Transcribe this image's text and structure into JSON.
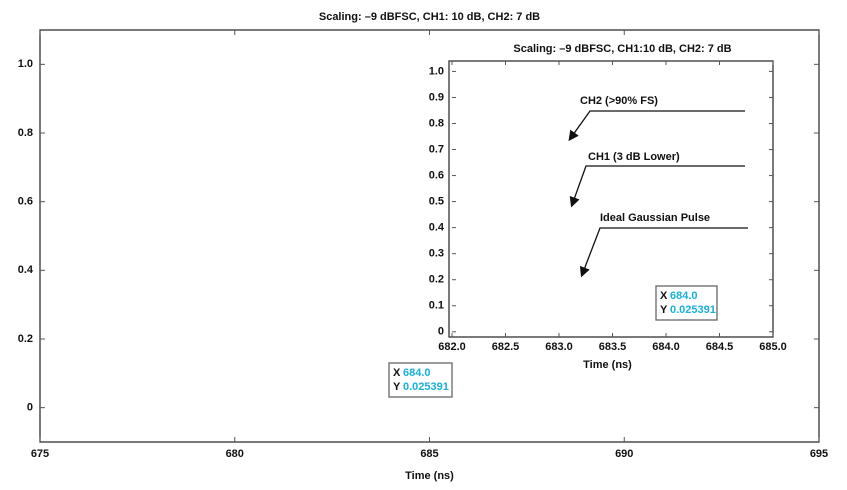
{
  "chart_data": [
    {
      "type": "line",
      "title": "Scaling: –9 dBFSC, CH1: 10 dB, CH2: 7 dB",
      "x_label": "Time (ns)",
      "series": [],
      "xlim": [
        675,
        695
      ],
      "xticks": [
        675,
        680,
        685,
        690,
        695
      ],
      "ylim": [
        -0.1,
        1.1
      ],
      "yticks": [
        0,
        0.2,
        0.4,
        0.6,
        0.8,
        {
          "value": 1,
          "label": "1.0"
        }
      ],
      "datatip": {
        "x_label": "X",
        "x": "684.0",
        "y_label": "Y",
        "y": "0.025391"
      }
    },
    {
      "type": "line",
      "title": "Scaling: –9 dBFSC, CH1:10 dB, CH2: 7 dB",
      "x_label": "Time (ns)",
      "series": [],
      "xlim": [
        682,
        685
      ],
      "xticks": [
        {
          "value": 682,
          "label": "682.0"
        },
        682.5,
        {
          "value": 683,
          "label": "683.0"
        },
        683.5,
        {
          "value": 684,
          "label": "684.0"
        },
        684.5,
        {
          "value": 685,
          "label": "685.0"
        }
      ],
      "ylim": [
        -0.02,
        1.04
      ],
      "yticks": [
        0,
        0.1,
        0.2,
        0.3,
        0.4,
        0.5,
        0.6,
        0.7,
        0.8,
        0.9,
        {
          "value": 1,
          "label": "1.0"
        }
      ],
      "annotations": [
        "CH2 (>90% FS)",
        "CH1 (3 dB Lower)",
        "Ideal Gaussian Pulse"
      ],
      "datatip": {
        "x_label": "X",
        "x": "684.0",
        "y_label": "Y",
        "y": "0.025391"
      }
    }
  ]
}
